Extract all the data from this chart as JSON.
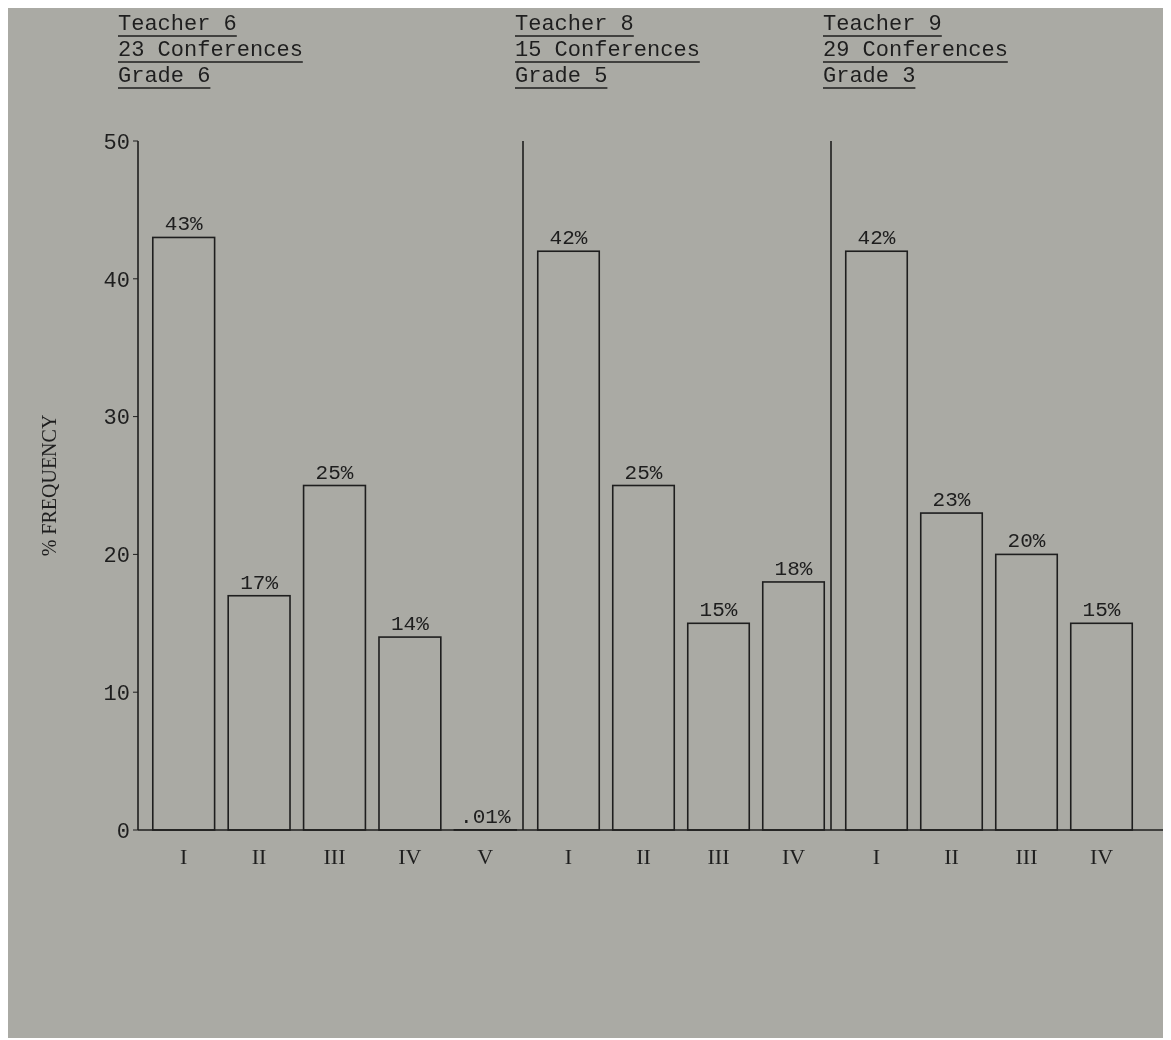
{
  "chart_data": [
    {
      "type": "bar",
      "title": "Teacher 6",
      "subtitle": "23 Conferences",
      "annotations": [
        "Grade 6"
      ],
      "ylabel": "% FREQUENCY",
      "categories": [
        "I",
        "II",
        "III",
        "IV",
        "V"
      ],
      "values": [
        43,
        17,
        25,
        14,
        0.01
      ],
      "value_labels": [
        "43%",
        "17%",
        "25%",
        "14%",
        ".01%"
      ],
      "color": "#1e1e1e",
      "ylim": [
        0,
        50
      ],
      "yticks": [
        0,
        10,
        20,
        30,
        40,
        50
      ],
      "grid": false
    },
    {
      "type": "bar",
      "title": "Teacher 8",
      "subtitle": "15 Conferences",
      "annotations": [
        "Grade 5"
      ],
      "categories": [
        "I",
        "II",
        "III",
        "IV"
      ],
      "values": [
        42,
        25,
        15,
        18
      ],
      "value_labels": [
        "42%",
        "25%",
        "15%",
        "18%"
      ],
      "color": "#1e1e1e",
      "ylim": [
        0,
        50
      ],
      "tick_labels": "x",
      "grid": false
    },
    {
      "type": "bar",
      "title": "Teacher 9",
      "subtitle": "29 Conferences",
      "annotations": [
        "Grade 3"
      ],
      "categories": [
        "I",
        "II",
        "III",
        "IV"
      ],
      "values": [
        42,
        23,
        20,
        15
      ],
      "value_labels": [
        "42%",
        "23%",
        "20%",
        "15%"
      ],
      "color": "#1e1e1e",
      "ylim": [
        0,
        50
      ],
      "tick_labels": "x",
      "grid": false
    }
  ]
}
